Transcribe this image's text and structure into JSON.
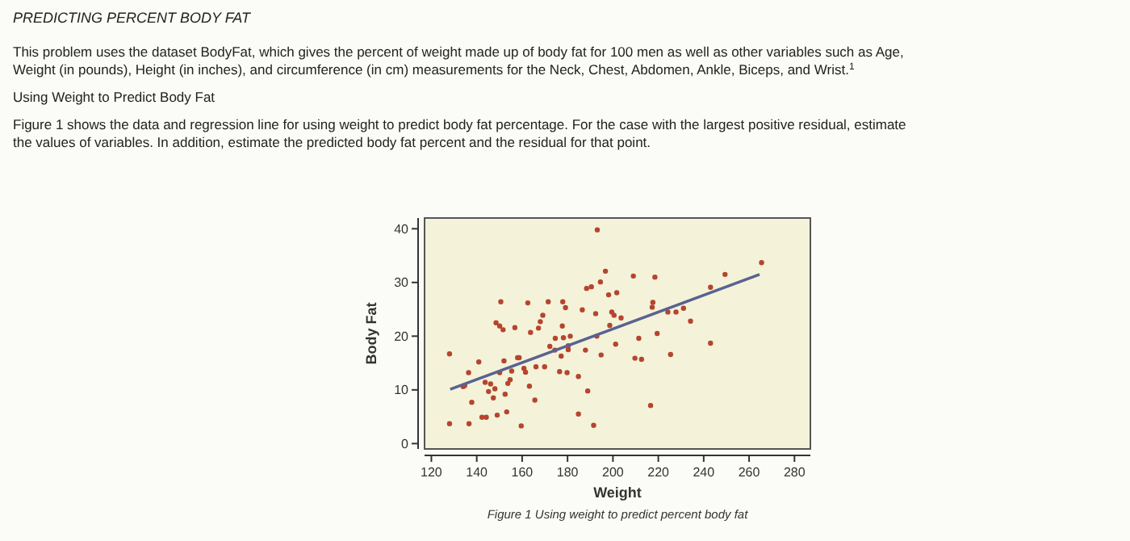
{
  "chart_data": {
    "type": "scatter",
    "title": "PREDICTING PERCENT BODY FAT",
    "annotations": [
      "This problem uses the dataset BodyFat, which gives the percent of weight made up of body fat for 100 men as well as other variables such as Age, Weight (in pounds), Height (in inches), and circumference (in cm) measurements for the Neck, Chest, Abdomen, Ankle, Biceps, and Wrist.$^{1}$",
      "Using Weight to Predict Body Fat",
      "Figure 1 shows the data and regression line for using weight to predict body fat percentage. For the case with the largest positive residual, estimate the values of variables. In addition, estimate the predicted body fat percent and the residual for that point.",
      "Figure 1 Using weight to predict percent body fat"
    ],
    "xlabel": "Weight",
    "ylabel": "Body Fat",
    "xlim": [
      117,
      287
    ],
    "ylim": [
      -1,
      42
    ],
    "xticks": [
      120,
      140,
      160,
      180,
      200,
      220,
      240,
      260,
      280
    ],
    "yticks": [
      0,
      10,
      20,
      30,
      40
    ],
    "grid": false,
    "series": [
      {
        "color": "#b5452f",
        "marker": "circle",
        "x": [
          128,
          128,
          134,
          134.7,
          136.4,
          136.6,
          137.8,
          140.9,
          142.3,
          144.2,
          143.7,
          145.2,
          146.1,
          147.3,
          148,
          149,
          148.5,
          150.1,
          150.6,
          150.1,
          151.6,
          152,
          152.5,
          153.7,
          153.2,
          154.7,
          155.4,
          156.8,
          158,
          158.7,
          159.6,
          160.8,
          161.5,
          162.5,
          163.2,
          163.7,
          165.6,
          166.1,
          167.2,
          168,
          169.1,
          169.9,
          171.5,
          172.2,
          174.4,
          174.6,
          176.5,
          177.2,
          177.9,
          177.7,
          178.2,
          179.1,
          179.8,
          180.3,
          180.3,
          181.2,
          184.8,
          184.8,
          186.5,
          187.9,
          188.4,
          188.9,
          190.5,
          191.5,
          192.4,
          192.9,
          193.1,
          194.8,
          194.5,
          196.7,
          198.1,
          198.6,
          199.5,
          200.5,
          201.7,
          201.2,
          203.6,
          209,
          209.7,
          211.4,
          212.6,
          216.6,
          217.3,
          217.6,
          218.5,
          219.5,
          224.2,
          225.4,
          227.8,
          231.1,
          234.2,
          243,
          243,
          249.4,
          265.5
        ],
        "values": [
          16.7,
          3.7,
          10.6,
          10.8,
          13.2,
          3.7,
          7.7,
          15.2,
          4.9,
          4.9,
          11.4,
          9.7,
          11.1,
          8.5,
          10.2,
          5.3,
          22.5,
          21.9,
          26.4,
          13.2,
          21.2,
          15.4,
          9.2,
          11.2,
          5.9,
          11.9,
          13.5,
          21.6,
          16,
          16,
          3.3,
          14,
          13.3,
          26.2,
          10.7,
          20.7,
          8.1,
          14.3,
          21.5,
          22.7,
          23.9,
          14.3,
          26.4,
          18.1,
          17.4,
          19.6,
          13.4,
          16.3,
          26.4,
          21.9,
          19.7,
          25.3,
          13.2,
          18.2,
          17.5,
          20,
          12.5,
          5.5,
          24.9,
          17.4,
          28.9,
          9.8,
          29.2,
          3.4,
          24.2,
          20,
          39.8,
          16.5,
          30.1,
          32.1,
          27.7,
          22,
          24.5,
          23.9,
          28.1,
          18.5,
          23.4,
          31.2,
          15.9,
          19.6,
          15.7,
          7.1,
          25.4,
          26.3,
          31,
          20.5,
          24.5,
          16.6,
          24.5,
          25.2,
          22.8,
          29.1,
          18.7,
          31.5,
          33.7
        ]
      },
      {
        "type": "line",
        "color": "#5a6291",
        "marker": "none",
        "x": [
          128.3,
          264.6
        ],
        "values": [
          10.1,
          31.5
        ]
      }
    ]
  }
}
